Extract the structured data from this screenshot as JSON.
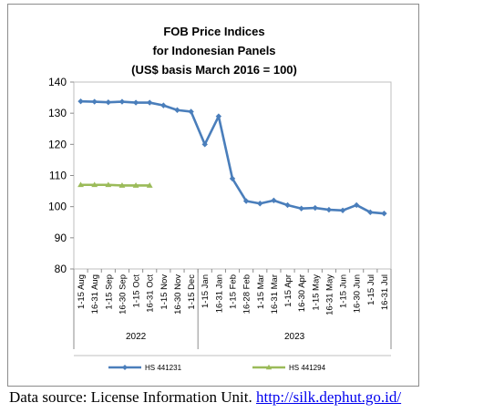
{
  "chart_data": {
    "type": "line",
    "title": [
      "FOB Price Indices",
      "for Indonesian Panels",
      "(US$ basis March 2016 = 100)"
    ],
    "categories": [
      "1-15 Aug",
      "16-31 Aug",
      "1-15 Sep",
      "16-30 Sep",
      "1-15 Oct",
      "16-31 Oct",
      "1-15 Nov",
      "16-30 Nov",
      "1-15 Dec",
      "1-15 Jan",
      "16-31 Jan",
      "1-15 Feb",
      "16-28 Feb",
      "1-15 Mar",
      "16-31 Mar",
      "1-15 Apr",
      "16-30 Apr",
      "1-15 May",
      "16-31 May",
      "1-15 Jun",
      "16-30 Jun",
      "1-15 Jul",
      "16-31 Jul"
    ],
    "groups": [
      {
        "label": "2022",
        "start": 0,
        "end": 8
      },
      {
        "label": "2023",
        "start": 9,
        "end": 22
      }
    ],
    "yticks": [
      80,
      90,
      100,
      110,
      120,
      130,
      140
    ],
    "ylim": [
      80,
      140
    ],
    "grid": false,
    "legend_position": "bottom",
    "series": [
      {
        "name": "HS 441231",
        "color": "#4a7ebb",
        "values": [
          133.8,
          133.7,
          133.5,
          133.7,
          133.4,
          133.4,
          132.5,
          131.0,
          130.5,
          120.0,
          129.0,
          109.0,
          101.8,
          101.0,
          102.0,
          100.5,
          99.4,
          99.6,
          99.0,
          98.8,
          100.5,
          98.2,
          97.8
        ]
      },
      {
        "name": "HS 441294",
        "color": "#9bbb59",
        "values": [
          107.0,
          107.0,
          107.0,
          106.8,
          106.8,
          106.8,
          null,
          null,
          null,
          null,
          null,
          null,
          null,
          null,
          null,
          null,
          null,
          null,
          null,
          null,
          null,
          null,
          null
        ]
      }
    ]
  },
  "source": {
    "prefix": "Data source: License Information Unit. ",
    "link_text": "http://silk.dephut.go.id/"
  }
}
